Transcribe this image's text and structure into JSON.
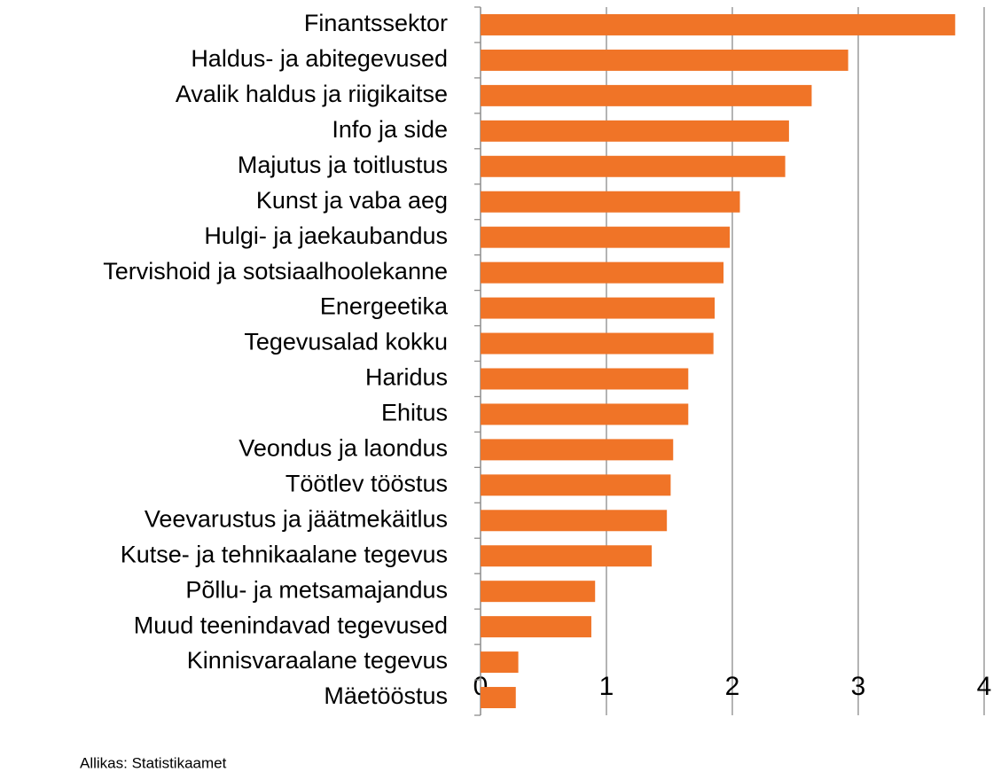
{
  "chart_data": {
    "type": "bar",
    "orientation": "horizontal",
    "categories": [
      "Finantssektor",
      "Haldus- ja abitegevused",
      "Avalik haldus ja riigikaitse",
      "Info ja side",
      "Majutus ja toitlustus",
      "Kunst ja vaba aeg",
      "Hulgi- ja jaekaubandus",
      "Tervishoid ja sotsiaalhoolekanne",
      "Energeetika",
      "Tegevusalad kokku",
      "Haridus",
      "Ehitus",
      "Veondus ja laondus",
      "Töötlev tööstus",
      "Veevarustus ja jäätmekäitlus",
      "Kutse- ja tehnikaalane tegevus",
      "Põllu- ja metsamajandus",
      "Muud teenindavad tegevused",
      "Kinnisvaraalane tegevus",
      "Mäetööstus"
    ],
    "values": [
      3.77,
      2.92,
      2.63,
      2.45,
      2.42,
      2.06,
      1.98,
      1.93,
      1.86,
      1.85,
      1.65,
      1.65,
      1.53,
      1.51,
      1.48,
      1.36,
      0.91,
      0.88,
      0.3,
      0.28
    ],
    "color": "#f07427",
    "xlim": [
      0,
      4
    ],
    "xticks": [
      0,
      1,
      2,
      3,
      4
    ],
    "grid": true,
    "source": "Allikas: Statistikaamet"
  }
}
